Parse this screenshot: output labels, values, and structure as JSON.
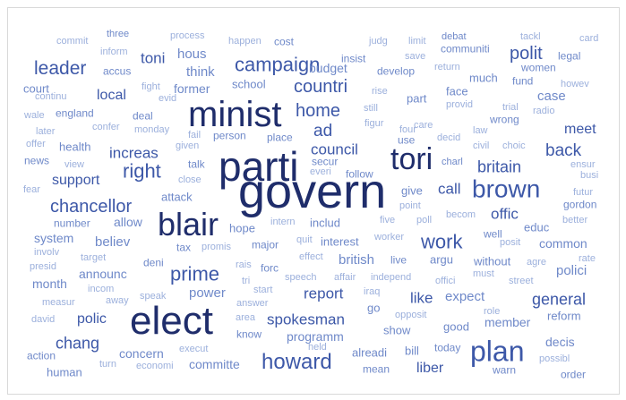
{
  "colors": {
    "dark": "#1f2d6b",
    "mid": "#3d58a8",
    "light": "#6f89c9",
    "pale": "#9cb0dc"
  },
  "words": [
    {
      "text": "govern",
      "weight": 54,
      "tone": "dark"
    },
    {
      "text": "parti",
      "weight": 46,
      "tone": "dark"
    },
    {
      "text": "elect",
      "weight": 44,
      "tone": "dark"
    },
    {
      "text": "minist",
      "weight": 40,
      "tone": "dark"
    },
    {
      "text": "blair",
      "weight": 36,
      "tone": "dark"
    },
    {
      "text": "tori",
      "weight": 34,
      "tone": "dark"
    },
    {
      "text": "plan",
      "weight": 32,
      "tone": "mid"
    },
    {
      "text": "brown",
      "weight": 28,
      "tone": "mid"
    },
    {
      "text": "howard",
      "weight": 24,
      "tone": "mid"
    },
    {
      "text": "campaign",
      "weight": 22,
      "tone": "mid"
    },
    {
      "text": "work",
      "weight": 22,
      "tone": "mid"
    },
    {
      "text": "prime",
      "weight": 22,
      "tone": "mid"
    },
    {
      "text": "right",
      "weight": 22,
      "tone": "mid"
    },
    {
      "text": "leader",
      "weight": 21,
      "tone": "mid"
    },
    {
      "text": "chancellor",
      "weight": 20,
      "tone": "mid"
    },
    {
      "text": "countri",
      "weight": 20,
      "tone": "mid"
    },
    {
      "text": "polit",
      "weight": 20,
      "tone": "mid"
    },
    {
      "text": "home",
      "weight": 20,
      "tone": "mid"
    },
    {
      "text": "ad",
      "weight": 19,
      "tone": "mid"
    },
    {
      "text": "back",
      "weight": 19,
      "tone": "mid"
    },
    {
      "text": "chang",
      "weight": 18,
      "tone": "mid"
    },
    {
      "text": "britain",
      "weight": 18,
      "tone": "mid"
    },
    {
      "text": "general",
      "weight": 18,
      "tone": "mid"
    },
    {
      "text": "report",
      "weight": 17,
      "tone": "mid"
    },
    {
      "text": "spokesman",
      "weight": 17,
      "tone": "mid"
    },
    {
      "text": "council",
      "weight": 17,
      "tone": "mid"
    },
    {
      "text": "increas",
      "weight": 17,
      "tone": "mid"
    },
    {
      "text": "offic",
      "weight": 17,
      "tone": "mid"
    },
    {
      "text": "toni",
      "weight": 17,
      "tone": "mid"
    },
    {
      "text": "call",
      "weight": 17,
      "tone": "mid"
    },
    {
      "text": "like",
      "weight": 17,
      "tone": "mid"
    },
    {
      "text": "liber",
      "weight": 16,
      "tone": "mid"
    },
    {
      "text": "polic",
      "weight": 16,
      "tone": "mid"
    },
    {
      "text": "support",
      "weight": 16,
      "tone": "mid"
    },
    {
      "text": "meet",
      "weight": 16,
      "tone": "mid"
    },
    {
      "text": "local",
      "weight": 16,
      "tone": "mid"
    },
    {
      "text": "believ",
      "weight": 15,
      "tone": "light"
    },
    {
      "text": "power",
      "weight": 15,
      "tone": "light"
    },
    {
      "text": "british",
      "weight": 15,
      "tone": "light"
    },
    {
      "text": "expect",
      "weight": 15,
      "tone": "light"
    },
    {
      "text": "think",
      "weight": 15,
      "tone": "light"
    },
    {
      "text": "hous",
      "weight": 15,
      "tone": "light"
    },
    {
      "text": "case",
      "weight": 15,
      "tone": "light"
    },
    {
      "text": "polici",
      "weight": 15,
      "tone": "light"
    },
    {
      "text": "common",
      "weight": 14,
      "tone": "light"
    },
    {
      "text": "member",
      "weight": 14,
      "tone": "light"
    },
    {
      "text": "announc",
      "weight": 14,
      "tone": "light"
    },
    {
      "text": "decis",
      "weight": 14,
      "tone": "light"
    },
    {
      "text": "programm",
      "weight": 14,
      "tone": "light"
    },
    {
      "text": "concern",
      "weight": 14,
      "tone": "light"
    },
    {
      "text": "committe",
      "weight": 14,
      "tone": "light"
    },
    {
      "text": "former",
      "weight": 14,
      "tone": "light"
    },
    {
      "text": "budget",
      "weight": 14,
      "tone": "light"
    },
    {
      "text": "allow",
      "weight": 14,
      "tone": "light"
    },
    {
      "text": "system",
      "weight": 14,
      "tone": "light"
    },
    {
      "text": "month",
      "weight": 14,
      "tone": "light"
    },
    {
      "text": "includ",
      "weight": 13,
      "tone": "light"
    },
    {
      "text": "interest",
      "weight": 13,
      "tone": "light"
    },
    {
      "text": "attack",
      "weight": 13,
      "tone": "light"
    },
    {
      "text": "school",
      "weight": 13,
      "tone": "light"
    },
    {
      "text": "face",
      "weight": 13,
      "tone": "light"
    },
    {
      "text": "much",
      "weight": 13,
      "tone": "light"
    },
    {
      "text": "give",
      "weight": 13,
      "tone": "light"
    },
    {
      "text": "court",
      "weight": 13,
      "tone": "light"
    },
    {
      "text": "health",
      "weight": 13,
      "tone": "light"
    },
    {
      "text": "human",
      "weight": 13,
      "tone": "light"
    },
    {
      "text": "reform",
      "weight": 13,
      "tone": "light"
    },
    {
      "text": "educ",
      "weight": 13,
      "tone": "light"
    },
    {
      "text": "alreadi",
      "weight": 13,
      "tone": "light"
    },
    {
      "text": "bill",
      "weight": 13,
      "tone": "light"
    },
    {
      "text": "show",
      "weight": 13,
      "tone": "light"
    },
    {
      "text": "part",
      "weight": 13,
      "tone": "light"
    },
    {
      "text": "go",
      "weight": 13,
      "tone": "light"
    },
    {
      "text": "argu",
      "weight": 13,
      "tone": "light"
    },
    {
      "text": "good",
      "weight": 13,
      "tone": "light"
    },
    {
      "text": "without",
      "weight": 13,
      "tone": "light"
    },
    {
      "text": "hope",
      "weight": 13,
      "tone": "light"
    },
    {
      "text": "number",
      "weight": 12,
      "tone": "light"
    },
    {
      "text": "accus",
      "weight": 12,
      "tone": "light"
    },
    {
      "text": "deal",
      "weight": 12,
      "tone": "light"
    },
    {
      "text": "action",
      "weight": 12,
      "tone": "light"
    },
    {
      "text": "major",
      "weight": 12,
      "tone": "light"
    },
    {
      "text": "insist",
      "weight": 12,
      "tone": "light"
    },
    {
      "text": "cost",
      "weight": 12,
      "tone": "light"
    },
    {
      "text": "follow",
      "weight": 12,
      "tone": "light"
    },
    {
      "text": "place",
      "weight": 12,
      "tone": "light"
    },
    {
      "text": "talk",
      "weight": 12,
      "tone": "light"
    },
    {
      "text": "legal",
      "weight": 12,
      "tone": "light"
    },
    {
      "text": "fund",
      "weight": 12,
      "tone": "light"
    },
    {
      "text": "women",
      "weight": 12,
      "tone": "light"
    },
    {
      "text": "develop",
      "weight": 12,
      "tone": "light"
    },
    {
      "text": "communiti",
      "weight": 12,
      "tone": "light"
    },
    {
      "text": "person",
      "weight": 12,
      "tone": "light"
    },
    {
      "text": "know",
      "weight": 12,
      "tone": "light"
    },
    {
      "text": "secur",
      "weight": 12,
      "tone": "light"
    },
    {
      "text": "use",
      "weight": 12,
      "tone": "light"
    },
    {
      "text": "news",
      "weight": 12,
      "tone": "light"
    },
    {
      "text": "well",
      "weight": 12,
      "tone": "light"
    },
    {
      "text": "live",
      "weight": 12,
      "tone": "light"
    },
    {
      "text": "tax",
      "weight": 12,
      "tone": "light"
    },
    {
      "text": "forc",
      "weight": 12,
      "tone": "light"
    },
    {
      "text": "deni",
      "weight": 12,
      "tone": "light"
    },
    {
      "text": "order",
      "weight": 12,
      "tone": "light"
    },
    {
      "text": "warn",
      "weight": 12,
      "tone": "light"
    },
    {
      "text": "today",
      "weight": 12,
      "tone": "light"
    },
    {
      "text": "england",
      "weight": 12,
      "tone": "light"
    },
    {
      "text": "gordon",
      "weight": 12,
      "tone": "light"
    },
    {
      "text": "mean",
      "weight": 12,
      "tone": "light"
    },
    {
      "text": "wrong",
      "weight": 12,
      "tone": "light"
    },
    {
      "text": "charl",
      "weight": 11,
      "tone": "light"
    },
    {
      "text": "debat",
      "weight": 11,
      "tone": "light"
    },
    {
      "text": "three",
      "weight": 11,
      "tone": "light"
    },
    {
      "text": "process",
      "weight": 11,
      "tone": "pale"
    },
    {
      "text": "happen",
      "weight": 11,
      "tone": "pale"
    },
    {
      "text": "commit",
      "weight": 11,
      "tone": "pale"
    },
    {
      "text": "inform",
      "weight": 11,
      "tone": "pale"
    },
    {
      "text": "judg",
      "weight": 11,
      "tone": "pale"
    },
    {
      "text": "limit",
      "weight": 11,
      "tone": "pale"
    },
    {
      "text": "tackl",
      "weight": 11,
      "tone": "pale"
    },
    {
      "text": "card",
      "weight": 11,
      "tone": "pale"
    },
    {
      "text": "save",
      "weight": 11,
      "tone": "pale"
    },
    {
      "text": "return",
      "weight": 11,
      "tone": "pale"
    },
    {
      "text": "fight",
      "weight": 11,
      "tone": "pale"
    },
    {
      "text": "evid",
      "weight": 11,
      "tone": "pale"
    },
    {
      "text": "howev",
      "weight": 11,
      "tone": "pale"
    },
    {
      "text": "rise",
      "weight": 11,
      "tone": "pale"
    },
    {
      "text": "continu",
      "weight": 11,
      "tone": "pale"
    },
    {
      "text": "provid",
      "weight": 11,
      "tone": "pale"
    },
    {
      "text": "trial",
      "weight": 11,
      "tone": "pale"
    },
    {
      "text": "still",
      "weight": 11,
      "tone": "pale"
    },
    {
      "text": "radio",
      "weight": 11,
      "tone": "pale"
    },
    {
      "text": "wale",
      "weight": 11,
      "tone": "pale"
    },
    {
      "text": "confer",
      "weight": 11,
      "tone": "pale"
    },
    {
      "text": "figur",
      "weight": 11,
      "tone": "pale"
    },
    {
      "text": "care",
      "weight": 11,
      "tone": "pale"
    },
    {
      "text": "later",
      "weight": 11,
      "tone": "pale"
    },
    {
      "text": "monday",
      "weight": 11,
      "tone": "pale"
    },
    {
      "text": "law",
      "weight": 11,
      "tone": "pale"
    },
    {
      "text": "four",
      "weight": 11,
      "tone": "pale"
    },
    {
      "text": "fail",
      "weight": 11,
      "tone": "pale"
    },
    {
      "text": "decid",
      "weight": 11,
      "tone": "pale"
    },
    {
      "text": "civil",
      "weight": 11,
      "tone": "pale"
    },
    {
      "text": "choic",
      "weight": 11,
      "tone": "pale"
    },
    {
      "text": "offer",
      "weight": 11,
      "tone": "pale"
    },
    {
      "text": "given",
      "weight": 11,
      "tone": "pale"
    },
    {
      "text": "ensur",
      "weight": 11,
      "tone": "pale"
    },
    {
      "text": "view",
      "weight": 11,
      "tone": "pale"
    },
    {
      "text": "everi",
      "weight": 11,
      "tone": "pale"
    },
    {
      "text": "busi",
      "weight": 11,
      "tone": "pale"
    },
    {
      "text": "close",
      "weight": 11,
      "tone": "pale"
    },
    {
      "text": "fear",
      "weight": 11,
      "tone": "pale"
    },
    {
      "text": "futur",
      "weight": 11,
      "tone": "pale"
    },
    {
      "text": "point",
      "weight": 11,
      "tone": "pale"
    },
    {
      "text": "intern",
      "weight": 11,
      "tone": "pale"
    },
    {
      "text": "five",
      "weight": 11,
      "tone": "pale"
    },
    {
      "text": "poll",
      "weight": 11,
      "tone": "pale"
    },
    {
      "text": "becom",
      "weight": 11,
      "tone": "pale"
    },
    {
      "text": "better",
      "weight": 11,
      "tone": "pale"
    },
    {
      "text": "promis",
      "weight": 11,
      "tone": "pale"
    },
    {
      "text": "quit",
      "weight": 11,
      "tone": "pale"
    },
    {
      "text": "worker",
      "weight": 11,
      "tone": "pale"
    },
    {
      "text": "posit",
      "weight": 11,
      "tone": "pale"
    },
    {
      "text": "involv",
      "weight": 11,
      "tone": "pale"
    },
    {
      "text": "target",
      "weight": 11,
      "tone": "pale"
    },
    {
      "text": "rais",
      "weight": 11,
      "tone": "pale"
    },
    {
      "text": "agre",
      "weight": 11,
      "tone": "pale"
    },
    {
      "text": "presid",
      "weight": 11,
      "tone": "pale"
    },
    {
      "text": "effect",
      "weight": 11,
      "tone": "pale"
    },
    {
      "text": "rate",
      "weight": 11,
      "tone": "pale"
    },
    {
      "text": "tri",
      "weight": 11,
      "tone": "pale"
    },
    {
      "text": "speech",
      "weight": 11,
      "tone": "pale"
    },
    {
      "text": "affair",
      "weight": 11,
      "tone": "pale"
    },
    {
      "text": "independ",
      "weight": 11,
      "tone": "pale"
    },
    {
      "text": "must",
      "weight": 11,
      "tone": "pale"
    },
    {
      "text": "incom",
      "weight": 11,
      "tone": "pale"
    },
    {
      "text": "start",
      "weight": 11,
      "tone": "pale"
    },
    {
      "text": "offici",
      "weight": 11,
      "tone": "pale"
    },
    {
      "text": "street",
      "weight": 11,
      "tone": "pale"
    },
    {
      "text": "measur",
      "weight": 11,
      "tone": "pale"
    },
    {
      "text": "away",
      "weight": 11,
      "tone": "pale"
    },
    {
      "text": "speak",
      "weight": 11,
      "tone": "pale"
    },
    {
      "text": "iraq",
      "weight": 11,
      "tone": "pale"
    },
    {
      "text": "answer",
      "weight": 11,
      "tone": "pale"
    },
    {
      "text": "area",
      "weight": 11,
      "tone": "pale"
    },
    {
      "text": "opposit",
      "weight": 11,
      "tone": "pale"
    },
    {
      "text": "role",
      "weight": 11,
      "tone": "pale"
    },
    {
      "text": "david",
      "weight": 11,
      "tone": "pale"
    },
    {
      "text": "execut",
      "weight": 11,
      "tone": "pale"
    },
    {
      "text": "held",
      "weight": 11,
      "tone": "pale"
    },
    {
      "text": "turn",
      "weight": 11,
      "tone": "pale"
    },
    {
      "text": "economi",
      "weight": 11,
      "tone": "pale"
    },
    {
      "text": "possibl",
      "weight": 11,
      "tone": "pale"
    }
  ]
}
